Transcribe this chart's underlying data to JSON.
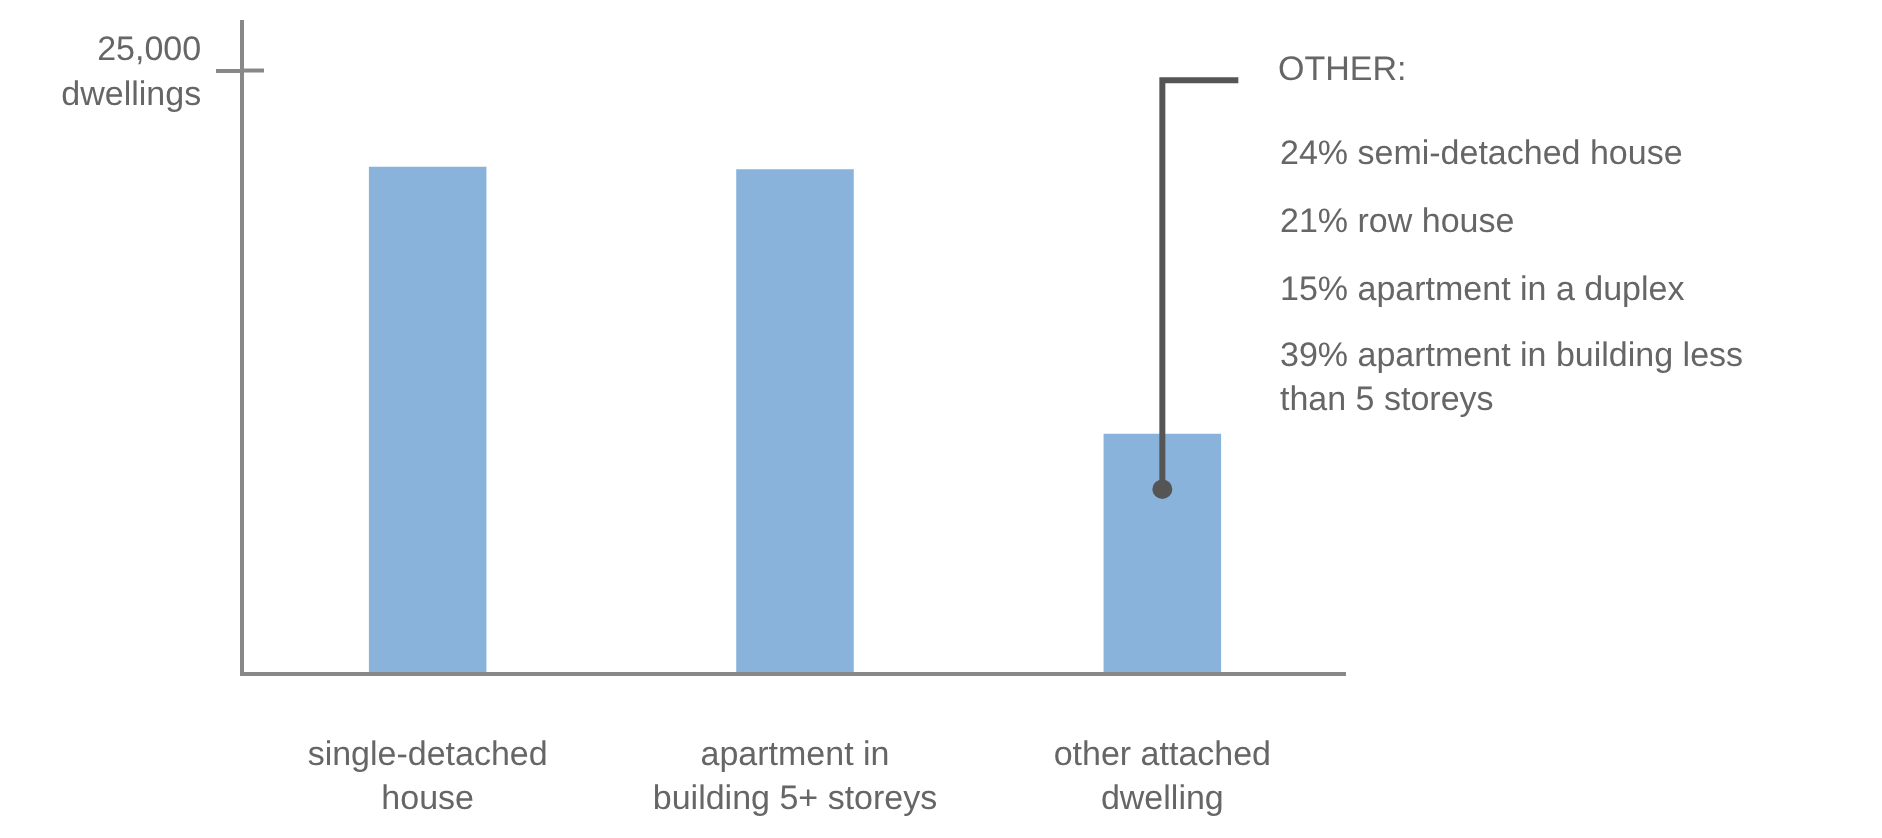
{
  "chart_data": {
    "type": "bar",
    "categories": [
      "single-detached\nhouse",
      "apartment in\nbuilding 5+ storeys",
      "other attached\ndwelling"
    ],
    "values": [
      21000,
      20900,
      9900
    ],
    "color": "#8ab3dc",
    "ylim": [
      0,
      27100
    ],
    "yticks": [
      {
        "value": 25000,
        "label": "25,000\ndwellings"
      }
    ],
    "legend": false,
    "annotations": [
      {
        "text": "OTHER:",
        "x": "other attached\ndwelling",
        "y": 7600
      },
      "24% semi-detached house",
      "21% row house",
      "15% apartment in a duplex",
      "39% apartment in building less\nthan 5 storeys"
    ]
  }
}
